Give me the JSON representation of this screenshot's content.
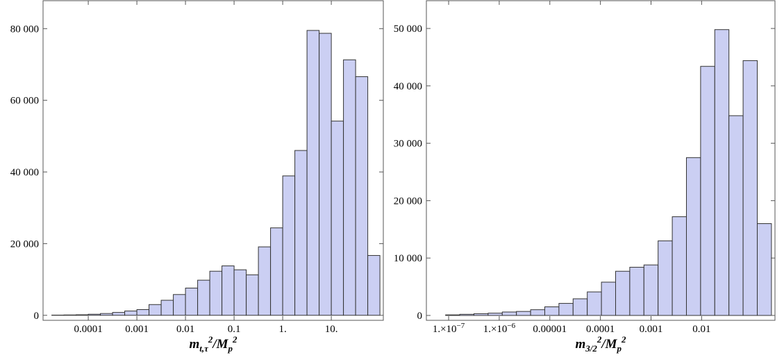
{
  "chart_data": [
    {
      "type": "histogram",
      "xscale": "log",
      "color": "#cbcff3",
      "edgecolor": "#333333",
      "bins": [
        1.778e-05,
        3.162e-05,
        5.623e-05,
        0.0001,
        0.0001778,
        0.0003162,
        0.0005623,
        0.001,
        0.001778,
        0.003162,
        0.005623,
        0.01,
        0.01778,
        0.03162,
        0.05623,
        0.1,
        0.1778,
        0.3162,
        0.5623,
        1,
        1.778,
        3.162,
        5.623,
        10,
        17.78,
        31.62,
        56.23,
        100
      ],
      "values": [
        60,
        100,
        150,
        300,
        500,
        800,
        1200,
        1600,
        3000,
        4200,
        5800,
        7600,
        9800,
        12300,
        13800,
        12700,
        11300,
        19100,
        24400,
        38900,
        46000,
        79500,
        78700,
        54200,
        71300,
        66600,
        16700
      ],
      "xlim": [
        1.175e-05,
        117.5
      ],
      "xticks": [
        0.0001,
        0.001,
        0.01,
        0.1,
        {
          "value": 1,
          "label": "1."
        },
        {
          "value": 10,
          "label": "10."
        }
      ],
      "ylim": [
        -1400,
        87800
      ],
      "yticks": [
        0,
        {
          "value": 20000,
          "label": "20 000"
        },
        {
          "value": 40000,
          "label": "40 000"
        },
        {
          "value": 60000,
          "label": "60 000"
        },
        {
          "value": 80000,
          "label": "80 000"
        }
      ],
      "xlabel": [
        [
          "m",
          "base"
        ],
        [
          "t,τ",
          "sub"
        ],
        [
          "2",
          "sup"
        ],
        [
          "/M",
          "base"
        ],
        [
          "p",
          "sub"
        ],
        [
          "2",
          "sup"
        ]
      ]
    },
    {
      "type": "histogram",
      "xscale": "log",
      "color": "#cbcff3",
      "edgecolor": "#333333",
      "bins": [
        8.71e-08,
        1.66e-07,
        3.162e-07,
        6.026e-07,
        1.148e-06,
        2.188e-06,
        4.169e-06,
        7.943e-06,
        1.514e-05,
        2.884e-05,
        5.495e-05,
        0.0001047,
        0.0001995,
        0.0003802,
        0.0007244,
        0.00138,
        0.00263,
        0.005012,
        0.00955,
        0.0182,
        0.03467,
        0.06607,
        0.1259,
        0.2399
      ],
      "values": [
        100,
        200,
        300,
        400,
        600,
        700,
        1000,
        1500,
        2100,
        2900,
        4100,
        5800,
        7700,
        8400,
        8800,
        13000,
        17200,
        27500,
        43400,
        49800,
        34800,
        44400,
        16000
      ],
      "xlim": [
        3.631e-08,
        0.2818
      ],
      "xticks": [
        {
          "value": 1e-07,
          "label": "1.×10",
          "exponent": "−7"
        },
        {
          "value": 1e-06,
          "label": "1.×10",
          "exponent": "−6"
        },
        1e-05,
        0.0001,
        0.001,
        0.01
      ],
      "ylim": [
        -850,
        54840
      ],
      "yticks": [
        0,
        {
          "value": 10000,
          "label": "10 000"
        },
        {
          "value": 20000,
          "label": "20 000"
        },
        {
          "value": 30000,
          "label": "30 000"
        },
        {
          "value": 40000,
          "label": "40 000"
        },
        {
          "value": 50000,
          "label": "50 000"
        }
      ],
      "xlabel": [
        [
          "m",
          "base"
        ],
        [
          "3/2",
          "sub"
        ],
        [
          "2",
          "sup"
        ],
        [
          "/M",
          "base"
        ],
        [
          "p",
          "sub"
        ],
        [
          "2",
          "sup"
        ]
      ]
    }
  ]
}
